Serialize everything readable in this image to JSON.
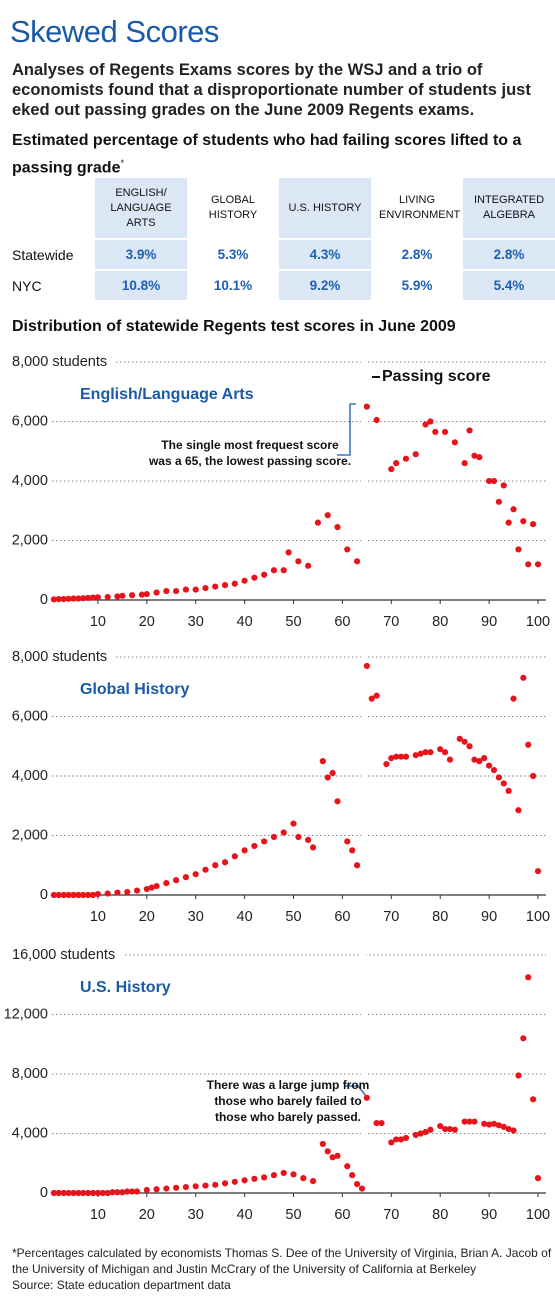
{
  "header": {
    "title": "Skewed Scores",
    "subtitle": "Analyses of Regents Exams scores by the WSJ and a trio of economists found that a disproportionate number of students just eked out passing grades on the June 2009 Regents exams."
  },
  "table": {
    "title": "Estimated percentage of students who had failing scores lifted to a passing grade",
    "footnote_marker": "*",
    "columns": [
      "ENGLISH/ LANGUAGE ARTS",
      "GLOBAL HISTORY",
      "U.S. HISTORY",
      "LIVING ENVIRONMENT",
      "INTEGRATED ALGEBRA"
    ],
    "rows": [
      {
        "label": "Statewide",
        "values": [
          "3.9%",
          "5.3%",
          "4.3%",
          "2.8%",
          "2.8%"
        ]
      },
      {
        "label": "NYC",
        "values": [
          "10.8%",
          "10.1%",
          "9.2%",
          "5.9%",
          "5.4%"
        ]
      }
    ]
  },
  "charts_title": "Distribution of statewide Regents test scores in June 2009",
  "chart_data": [
    {
      "type": "scatter",
      "title": "English/Language Arts",
      "color": "#e8141c",
      "xlim": [
        0,
        100
      ],
      "xticks": [
        10,
        20,
        30,
        40,
        50,
        60,
        70,
        80,
        90,
        100
      ],
      "ylim": [
        0,
        8000
      ],
      "yticks": [
        0,
        {
          "value": 2000,
          "label": "2,000"
        },
        {
          "value": 4000,
          "label": "4,000"
        },
        {
          "value": 6000,
          "label": "6,000"
        },
        {
          "value": 8000,
          "label": "8,000 students"
        }
      ],
      "grid": true,
      "vline_x": 64.3,
      "vline_label": "Passing score",
      "annotation": [
        "The single most frequest score",
        "was a 65, the lowest passing score."
      ],
      "x": [
        1,
        2,
        3,
        4,
        5,
        6,
        7,
        8,
        9,
        10,
        12,
        14,
        15,
        17,
        19,
        20,
        22,
        24,
        26,
        28,
        30,
        32,
        34,
        36,
        38,
        40,
        42,
        44,
        46,
        48,
        49,
        51,
        53,
        55,
        57,
        59,
        61,
        63,
        65,
        67,
        70,
        71,
        73,
        75,
        77,
        78,
        79,
        81,
        83,
        85,
        86,
        87,
        88,
        90,
        91,
        92,
        93,
        94,
        95,
        96,
        97,
        98,
        99,
        100
      ],
      "values": [
        20,
        30,
        30,
        40,
        50,
        50,
        60,
        70,
        80,
        90,
        100,
        120,
        140,
        160,
        180,
        200,
        250,
        300,
        300,
        350,
        350,
        400,
        450,
        500,
        550,
        650,
        750,
        850,
        1000,
        1000,
        1600,
        1300,
        1150,
        2600,
        2850,
        2450,
        1700,
        1300,
        6500,
        6050,
        4400,
        4600,
        4750,
        4900,
        5900,
        6000,
        5650,
        5650,
        5300,
        4600,
        5700,
        4850,
        4800,
        4000,
        4000,
        3300,
        3850,
        2600,
        3050,
        1700,
        2650,
        1200,
        2550,
        1200
      ]
    },
    {
      "type": "scatter",
      "title": "Global History",
      "color": "#e8141c",
      "xlim": [
        0,
        100
      ],
      "xticks": [
        10,
        20,
        30,
        40,
        50,
        60,
        70,
        80,
        90,
        100
      ],
      "ylim": [
        0,
        8000
      ],
      "yticks": [
        0,
        {
          "value": 2000,
          "label": "2,000"
        },
        {
          "value": 4000,
          "label": "4,000"
        },
        {
          "value": 6000,
          "label": "6,000"
        },
        {
          "value": 8000,
          "label": "8,000 students"
        }
      ],
      "grid": true,
      "vline_x": 64.3,
      "x": [
        1,
        2,
        3,
        4,
        5,
        6,
        7,
        8,
        9,
        10,
        12,
        14,
        16,
        18,
        20,
        21,
        22,
        24,
        26,
        28,
        30,
        32,
        34,
        36,
        38,
        40,
        42,
        44,
        46,
        48,
        50,
        51,
        53,
        54,
        56,
        57,
        58,
        59,
        61,
        62,
        63,
        65,
        66,
        67,
        69,
        70,
        71,
        72,
        73,
        75,
        76,
        77,
        78,
        80,
        81,
        82,
        84,
        85,
        86,
        87,
        88,
        89,
        90,
        91,
        92,
        93,
        94,
        95,
        96,
        97,
        98,
        99,
        100
      ],
      "values": [
        0,
        0,
        0,
        0,
        0,
        0,
        0,
        0,
        0,
        30,
        50,
        80,
        100,
        150,
        200,
        250,
        300,
        400,
        500,
        600,
        700,
        850,
        1000,
        1100,
        1300,
        1500,
        1650,
        1800,
        1950,
        2100,
        2400,
        1950,
        1850,
        1600,
        4500,
        3950,
        4100,
        3150,
        1800,
        1500,
        1000,
        7700,
        6600,
        6700,
        4400,
        4600,
        4650,
        4650,
        4650,
        4700,
        4750,
        4800,
        4800,
        4900,
        4800,
        4550,
        5250,
        5150,
        5000,
        4550,
        4500,
        4600,
        4350,
        4200,
        3950,
        3750,
        3500,
        6600,
        2850,
        7300,
        5050,
        4000,
        800
      ]
    },
    {
      "type": "scatter",
      "title": "U.S. History",
      "color": "#e8141c",
      "xlim": [
        0,
        100
      ],
      "xticks": [
        10,
        20,
        30,
        40,
        50,
        60,
        70,
        80,
        90,
        100
      ],
      "ylim": [
        0,
        16000
      ],
      "yticks": [
        0,
        {
          "value": 4000,
          "label": "4,000"
        },
        {
          "value": 8000,
          "label": "8,000"
        },
        {
          "value": 12000,
          "label": "12,000"
        },
        {
          "value": 16000,
          "label": "16,000 students"
        }
      ],
      "grid": true,
      "vline_x": 64.3,
      "annotation": [
        "There was a large jump from",
        "those who barely failed to",
        "those who barely passed."
      ],
      "x": [
        1,
        2,
        3,
        4,
        5,
        6,
        7,
        8,
        9,
        10,
        11,
        12,
        13,
        14,
        15,
        16,
        17,
        18,
        20,
        22,
        24,
        26,
        28,
        30,
        32,
        34,
        36,
        38,
        40,
        42,
        44,
        46,
        48,
        50,
        52,
        54,
        56,
        57,
        58,
        59,
        61,
        62,
        63,
        64,
        65,
        67,
        68,
        70,
        71,
        72,
        73,
        75,
        76,
        77,
        78,
        80,
        81,
        82,
        83,
        85,
        86,
        87,
        89,
        90,
        91,
        92,
        93,
        94,
        95,
        96,
        97,
        98,
        99,
        100
      ],
      "values": [
        0,
        0,
        0,
        0,
        0,
        0,
        0,
        0,
        0,
        0,
        0,
        0,
        50,
        50,
        50,
        100,
        100,
        100,
        200,
        250,
        300,
        350,
        400,
        450,
        500,
        550,
        650,
        750,
        850,
        950,
        1050,
        1200,
        1350,
        1250,
        1000,
        800,
        3300,
        2800,
        2400,
        2500,
        1800,
        1200,
        600,
        300,
        6400,
        4700,
        4700,
        3400,
        3600,
        3600,
        3700,
        3900,
        4000,
        4100,
        4250,
        4500,
        4300,
        4300,
        4250,
        4800,
        4800,
        4800,
        4650,
        4600,
        4650,
        4550,
        4450,
        4300,
        4200,
        7900,
        10400,
        14500,
        6300,
        1000
      ]
    }
  ],
  "footer": {
    "note": "*Percentages calculated by economists Thomas S. Dee of the University of Virginia, Brian A. Jacob of the University of Michigan and Justin McCrary of the University of California at Berkeley",
    "source": "Source: State education department data"
  }
}
